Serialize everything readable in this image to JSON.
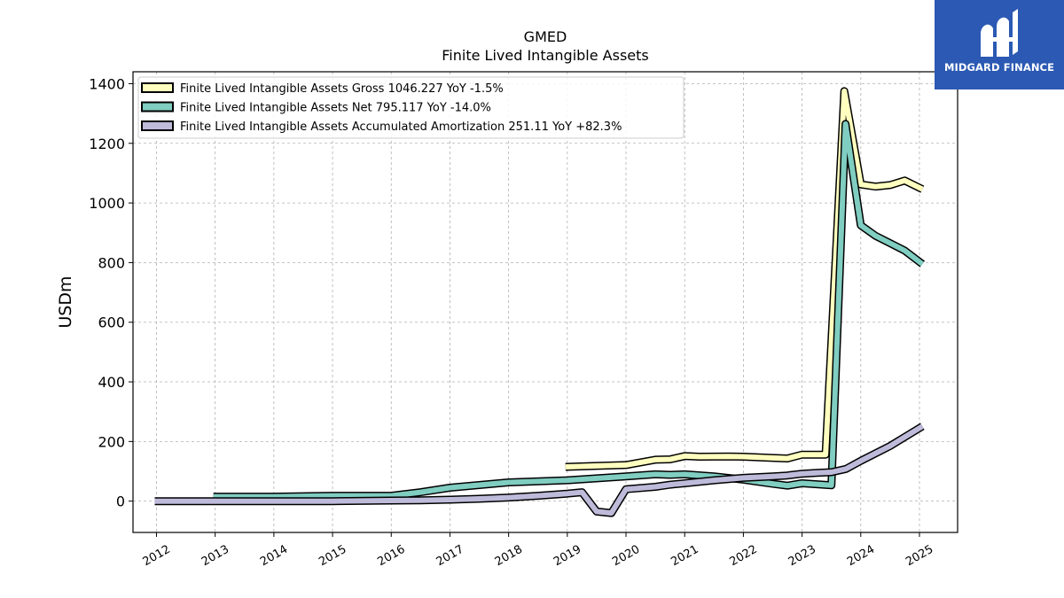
{
  "logo": {
    "text": "MIDGARD FINANCE",
    "background": "#2b59b3"
  },
  "chart_data": {
    "type": "line",
    "title": "GMED",
    "subtitle": "Finite Lived Intangible Assets",
    "xlabel": "",
    "ylabel": "USDm",
    "xlim": [
      2011.6,
      2025.65
    ],
    "ylim": [
      -105,
      1440
    ],
    "x_ticks": [
      "2012",
      "2013",
      "2014",
      "2015",
      "2016",
      "2017",
      "2018",
      "2019",
      "2020",
      "2021",
      "2022",
      "2023",
      "2024",
      "2025"
    ],
    "y_ticks": [
      0,
      200,
      400,
      600,
      800,
      1000,
      1200,
      1400
    ],
    "grid": true,
    "legend_position": "top-left",
    "series": [
      {
        "name": "Finite Lived Intangible Assets Gross",
        "legend_label": "Finite Lived Intangible Assets Gross  1046.227 YoY -1.5%",
        "color": "#ffffbf",
        "points": [
          [
            2018.97,
            115
          ],
          [
            2019.5,
            118
          ],
          [
            2020.0,
            121
          ],
          [
            2020.5,
            139
          ],
          [
            2020.75,
            140
          ],
          [
            2021.0,
            151
          ],
          [
            2021.25,
            149
          ],
          [
            2021.75,
            150
          ],
          [
            2022.0,
            149
          ],
          [
            2022.5,
            145
          ],
          [
            2022.75,
            143
          ],
          [
            2023.0,
            156
          ],
          [
            2023.4,
            156
          ],
          [
            2023.72,
            1375
          ],
          [
            2024.0,
            1062
          ],
          [
            2024.25,
            1055
          ],
          [
            2024.5,
            1060
          ],
          [
            2024.75,
            1075
          ],
          [
            2025.05,
            1046
          ]
        ]
      },
      {
        "name": "Finite Lived Intangible Assets Net",
        "legend_label": "Finite Lived Intangible Assets Net  795.117 YoY -14.0%",
        "color": "#80cdc1",
        "points": [
          [
            2012.97,
            15
          ],
          [
            2013.5,
            15
          ],
          [
            2014.0,
            15
          ],
          [
            2015.0,
            18
          ],
          [
            2016.0,
            18
          ],
          [
            2016.5,
            30
          ],
          [
            2017.0,
            45
          ],
          [
            2018.0,
            63
          ],
          [
            2019.0,
            70
          ],
          [
            2020.0,
            83
          ],
          [
            2020.5,
            90
          ],
          [
            2020.75,
            88
          ],
          [
            2021.0,
            90
          ],
          [
            2021.5,
            83
          ],
          [
            2022.0,
            72
          ],
          [
            2022.5,
            58
          ],
          [
            2022.75,
            52
          ],
          [
            2023.0,
            60
          ],
          [
            2023.5,
            53
          ],
          [
            2023.74,
            1265
          ],
          [
            2024.0,
            925
          ],
          [
            2024.25,
            890
          ],
          [
            2024.5,
            865
          ],
          [
            2024.75,
            840
          ],
          [
            2025.05,
            795
          ]
        ]
      },
      {
        "name": "Finite Lived Intangible Assets Accumulated Amortization",
        "legend_label": "Finite Lived Intangible Assets Accumulated Amortization  251.11 YoY +82.3%",
        "color": "#bebada",
        "points": [
          [
            2011.97,
            0
          ],
          [
            2013.0,
            0
          ],
          [
            2014.0,
            0
          ],
          [
            2015.0,
            0
          ],
          [
            2016.0,
            2
          ],
          [
            2016.5,
            3
          ],
          [
            2017.0,
            5
          ],
          [
            2017.5,
            8
          ],
          [
            2018.0,
            12
          ],
          [
            2018.5,
            18
          ],
          [
            2019.0,
            25
          ],
          [
            2019.25,
            30
          ],
          [
            2019.5,
            -35
          ],
          [
            2019.75,
            -40
          ],
          [
            2020.0,
            40
          ],
          [
            2020.5,
            48
          ],
          [
            2020.75,
            55
          ],
          [
            2021.0,
            60
          ],
          [
            2021.5,
            70
          ],
          [
            2022.0,
            78
          ],
          [
            2022.5,
            83
          ],
          [
            2022.75,
            86
          ],
          [
            2023.0,
            92
          ],
          [
            2023.25,
            95
          ],
          [
            2023.5,
            97
          ],
          [
            2023.75,
            108
          ],
          [
            2024.0,
            135
          ],
          [
            2024.5,
            185
          ],
          [
            2024.75,
            215
          ],
          [
            2025.05,
            251
          ]
        ]
      }
    ]
  }
}
